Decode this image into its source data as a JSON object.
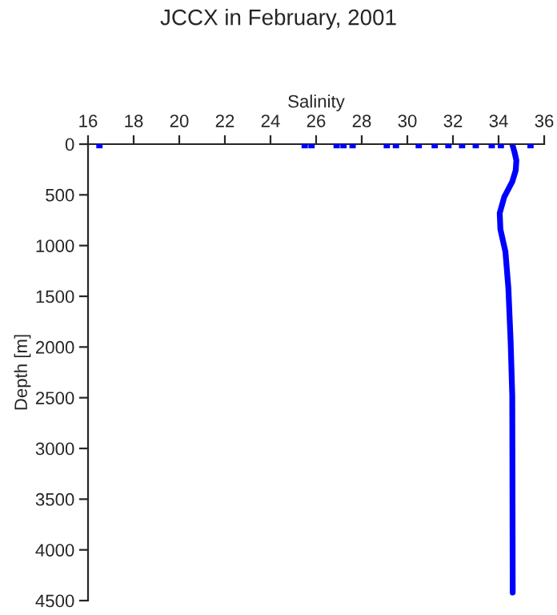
{
  "chart_data": {
    "type": "line",
    "title": "JCCX in February, 2001",
    "xlabel": "Salinity",
    "ylabel": "Depth [m]",
    "xlim": [
      16,
      36
    ],
    "xticks": [
      16,
      18,
      20,
      22,
      24,
      26,
      28,
      30,
      32,
      34,
      36
    ],
    "ylim": [
      4500,
      0
    ],
    "yticks": [
      0,
      500,
      1000,
      1500,
      2000,
      2500,
      3000,
      3500,
      4000,
      4500
    ],
    "grid": false,
    "legend": false,
    "series": [
      {
        "color": "#0000ff",
        "marker": "none",
        "line_style": "solid",
        "x": [
          34.6,
          34.7,
          34.78,
          34.75,
          34.6,
          34.25,
          34.05,
          34.08,
          34.3,
          34.43,
          34.53,
          34.6,
          34.62
        ],
        "values": [
          0,
          80,
          160,
          260,
          370,
          520,
          680,
          840,
          1060,
          1420,
          1950,
          2480,
          4420
        ]
      },
      {
        "type": "scatter",
        "color": "#0000ff",
        "marker": "square",
        "x": [
          16.5,
          25.5,
          25.8,
          26.9,
          27.2,
          27.6,
          29.1,
          29.5,
          30.5,
          31.2,
          31.8,
          32.4,
          33.0,
          33.7,
          34.1,
          35.4
        ],
        "values": [
          10,
          10,
          10,
          10,
          10,
          10,
          10,
          10,
          10,
          10,
          10,
          10,
          10,
          10,
          10,
          10
        ]
      }
    ]
  }
}
